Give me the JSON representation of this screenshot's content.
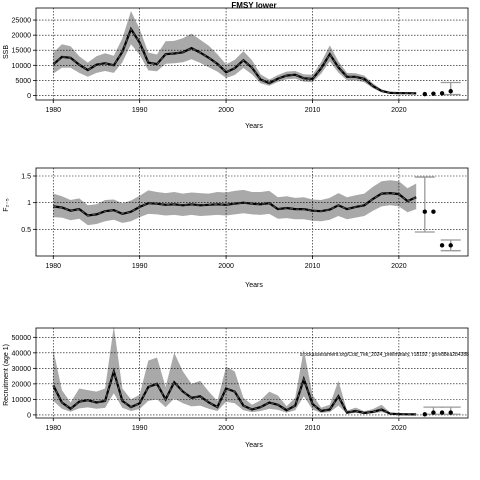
{
  "chart_data": [
    {
      "type": "line",
      "title": "FMSY lower",
      "xlabel": "Years",
      "ylabel": "SSB",
      "xlim": [
        1978,
        2028
      ],
      "ylim": [
        -1500,
        29000
      ],
      "xticks": [
        1980,
        1990,
        2000,
        2010,
        2020
      ],
      "yticks": [
        0,
        5000,
        10000,
        15000,
        20000,
        25000
      ],
      "grid": true,
      "x": [
        1980,
        1981,
        1982,
        1983,
        1984,
        1985,
        1986,
        1987,
        1988,
        1989,
        1990,
        1991,
        1992,
        1993,
        1994,
        1995,
        1996,
        1997,
        1998,
        1999,
        2000,
        2001,
        2002,
        2003,
        2004,
        2005,
        2006,
        2007,
        2008,
        2009,
        2010,
        2011,
        2012,
        2013,
        2014,
        2015,
        2016,
        2017,
        2018,
        2019,
        2020,
        2021,
        2022
      ],
      "series": [
        {
          "values": [
            10300,
            12800,
            12500,
            10200,
            8400,
            10200,
            10700,
            10000,
            14500,
            22000,
            17500,
            10900,
            10400,
            13700,
            13900,
            14300,
            15700,
            14200,
            12500,
            10500,
            7700,
            9000,
            11700,
            9200,
            5300,
            4100,
            5600,
            6600,
            6900,
            5700,
            5500,
            9000,
            13700,
            9300,
            6200,
            6200,
            5500,
            3100,
            1500,
            850,
            800,
            760,
            700
          ]
        }
      ],
      "band_upper": [
        14200,
        17000,
        16300,
        13000,
        10900,
        13000,
        14000,
        13200,
        19000,
        28000,
        22000,
        14200,
        13600,
        18000,
        18100,
        19000,
        20500,
        18500,
        16500,
        13700,
        10300,
        11800,
        14700,
        11700,
        7000,
        5300,
        6800,
        7900,
        8100,
        7000,
        6900,
        11000,
        16600,
        11300,
        7500,
        7400,
        6600,
        4000,
        2000,
        1200,
        1100,
        1050,
        1000
      ],
      "band_lower": [
        7300,
        9200,
        9200,
        7500,
        6200,
        7500,
        8100,
        7500,
        11000,
        17000,
        13500,
        8300,
        8000,
        10500,
        10700,
        11000,
        12000,
        10800,
        9300,
        7900,
        5800,
        6800,
        9100,
        7000,
        4000,
        3200,
        4500,
        5400,
        5600,
        4600,
        4400,
        7200,
        11300,
        7600,
        5000,
        5000,
        4400,
        2400,
        1100,
        600,
        560,
        530,
        490
      ],
      "projection_x": [
        2023,
        2024,
        2025,
        2026
      ],
      "projection_y": [
        450,
        600,
        700,
        1400
      ],
      "projection_error": [
        {
          "x": 2026,
          "lower": 300,
          "upper": 4300
        }
      ]
    },
    {
      "type": "line",
      "title": "",
      "xlabel": "Years",
      "ylabel": "F₂₋₅",
      "xlim": [
        1978,
        2028
      ],
      "ylim": [
        0.0,
        1.65
      ],
      "xticks": [
        1980,
        1990,
        2000,
        2010,
        2020
      ],
      "yticks": [
        0.5,
        1.0,
        1.5
      ],
      "grid": true,
      "x": [
        1980,
        1981,
        1982,
        1983,
        1984,
        1985,
        1986,
        1987,
        1988,
        1989,
        1990,
        1991,
        1992,
        1993,
        1994,
        1995,
        1996,
        1997,
        1998,
        1999,
        2000,
        2001,
        2002,
        2003,
        2004,
        2005,
        2006,
        2007,
        2008,
        2009,
        2010,
        2011,
        2012,
        2013,
        2014,
        2015,
        2016,
        2017,
        2018,
        2019,
        2020,
        2021,
        2022
      ],
      "series": [
        {
          "values": [
            0.93,
            0.91,
            0.85,
            0.88,
            0.76,
            0.78,
            0.84,
            0.86,
            0.79,
            0.83,
            0.92,
            0.99,
            0.98,
            0.96,
            0.97,
            0.95,
            0.97,
            0.95,
            0.96,
            0.97,
            0.96,
            0.98,
            1.0,
            0.98,
            0.97,
            0.99,
            0.88,
            0.9,
            0.88,
            0.88,
            0.85,
            0.84,
            0.87,
            0.95,
            0.88,
            0.92,
            0.95,
            1.07,
            1.17,
            1.18,
            1.16,
            1.03,
            1.1
          ]
        }
      ],
      "band_upper": [
        1.17,
        1.12,
        1.05,
        1.08,
        0.95,
        0.97,
        1.05,
        1.06,
        0.99,
        1.04,
        1.13,
        1.23,
        1.2,
        1.18,
        1.2,
        1.17,
        1.19,
        1.18,
        1.17,
        1.2,
        1.19,
        1.22,
        1.24,
        1.2,
        1.2,
        1.22,
        1.1,
        1.12,
        1.09,
        1.1,
        1.06,
        1.05,
        1.09,
        1.18,
        1.1,
        1.14,
        1.17,
        1.3,
        1.4,
        1.42,
        1.4,
        1.27,
        1.36
      ],
      "band_lower": [
        0.73,
        0.72,
        0.67,
        0.7,
        0.58,
        0.6,
        0.65,
        0.68,
        0.62,
        0.65,
        0.73,
        0.79,
        0.78,
        0.76,
        0.77,
        0.75,
        0.77,
        0.75,
        0.76,
        0.77,
        0.76,
        0.78,
        0.8,
        0.78,
        0.77,
        0.79,
        0.7,
        0.71,
        0.69,
        0.69,
        0.66,
        0.65,
        0.68,
        0.75,
        0.69,
        0.72,
        0.75,
        0.85,
        0.93,
        0.95,
        0.93,
        0.82,
        0.88
      ],
      "projection_x": [
        2023,
        2024,
        2025,
        2026
      ],
      "projection_y": [
        0.83,
        0.83,
        0.2,
        0.2
      ],
      "projection_error": [
        {
          "x": 2023,
          "lower": 0.45,
          "upper": 1.48
        },
        {
          "x": 2026,
          "lower": 0.1,
          "upper": 0.3
        }
      ]
    },
    {
      "type": "line",
      "title": "",
      "xlabel": "Years",
      "ylabel": "Recruitment (age 1)",
      "xlim": [
        1978,
        2028
      ],
      "ylim": [
        -2000,
        56000
      ],
      "xticks": [
        1980,
        1990,
        2000,
        2010,
        2020
      ],
      "yticks": [
        0,
        10000,
        20000,
        30000,
        40000,
        50000
      ],
      "grid": true,
      "annotation": "stockassessment.org/Cod_7ek_2024_preliminary, r18192 ; git:e88ea2b4388",
      "x": [
        1980,
        1981,
        1982,
        1983,
        1984,
        1985,
        1986,
        1987,
        1988,
        1989,
        1990,
        1991,
        1992,
        1993,
        1994,
        1995,
        1996,
        1997,
        1998,
        1999,
        2000,
        2001,
        2002,
        2003,
        2004,
        2005,
        2006,
        2007,
        2008,
        2009,
        2010,
        2011,
        2012,
        2013,
        2014,
        2015,
        2016,
        2017,
        2018,
        2019,
        2020,
        2021,
        2022
      ],
      "series": [
        {
          "values": [
            19000,
            8000,
            4000,
            8500,
            9500,
            8000,
            9000,
            28000,
            9000,
            5000,
            7500,
            18000,
            20000,
            10000,
            21000,
            15000,
            11000,
            12000,
            8000,
            5000,
            17000,
            15000,
            6000,
            3500,
            5000,
            8000,
            6500,
            3000,
            6000,
            23000,
            7000,
            2500,
            3500,
            12000,
            1500,
            2500,
            1200,
            2000,
            3500,
            800,
            500,
            400,
            350
          ]
        }
      ],
      "band_upper": [
        42000,
        16000,
        8000,
        17000,
        16000,
        15000,
        17000,
        57000,
        17000,
        10000,
        13000,
        35000,
        37000,
        18000,
        40000,
        28000,
        20000,
        22000,
        15000,
        9000,
        31000,
        28000,
        11000,
        6500,
        9500,
        15000,
        12500,
        5600,
        11000,
        42000,
        13000,
        4700,
        6500,
        22000,
        2800,
        4700,
        2300,
        3800,
        6500,
        1500,
        1000,
        800,
        700
      ],
      "band_lower": [
        9000,
        4000,
        2000,
        4200,
        4800,
        4000,
        4500,
        14000,
        4500,
        2500,
        3800,
        9000,
        10000,
        5000,
        10500,
        7500,
        5500,
        6000,
        4000,
        2500,
        8500,
        7500,
        3000,
        1800,
        2500,
        4000,
        3200,
        1500,
        3000,
        12000,
        3500,
        1300,
        1800,
        6000,
        750,
        1300,
        600,
        1000,
        1800,
        400,
        250,
        200,
        180
      ],
      "projection_x": [
        2023,
        2024,
        2025,
        2026
      ],
      "projection_y": [
        350,
        1500,
        1500,
        1500
      ],
      "projection_error": [
        {
          "x": 2024,
          "lower": 400,
          "upper": 5000
        },
        {
          "x": 2026,
          "lower": 400,
          "upper": 5000
        }
      ]
    }
  ]
}
